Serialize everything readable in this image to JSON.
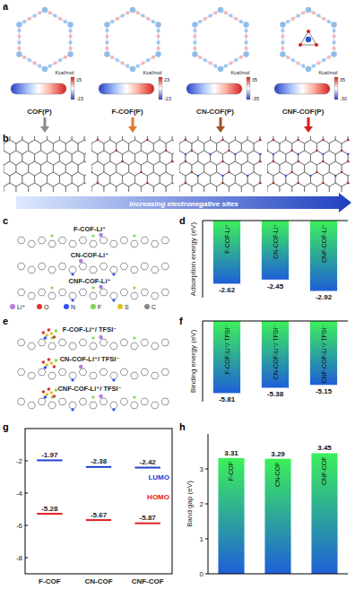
{
  "panel_labels": [
    "a",
    "b",
    "c",
    "d",
    "e",
    "f",
    "g",
    "h"
  ],
  "structures": [
    {
      "name": "COF(P)",
      "color": "#8c8c8c",
      "esp_unit": "Kcal/mol",
      "esp_max": 15,
      "esp_min": -15
    },
    {
      "name": "F-COF(P)",
      "color": "#e07b2e",
      "esp_unit": "Kcal/mol",
      "esp_max": 23,
      "esp_min": -23
    },
    {
      "name": "CN-COF(P)",
      "color": "#a0522d",
      "esp_unit": "Kcal/mol",
      "esp_max": 35,
      "esp_min": -35
    },
    {
      "name": "CNF-COF(P)",
      "color": "#d42020",
      "esp_unit": "Kcal/mol",
      "esp_max": 35,
      "esp_min": -30
    }
  ],
  "trend_label": "Increasing electronegative sites",
  "li_complexes": [
    "F-COF-Li⁺",
    "CN-COF-Li⁺",
    "CNF-COF-Li⁺"
  ],
  "tfsi_complexes": [
    "F-COF-Li⁺/ TFSI⁻",
    "CN-COF-Li⁺/ TFSI⁻",
    "CNF-COF-Li⁺/ TFSI⁻"
  ],
  "atoms": [
    {
      "label": "Li⁺",
      "color": "#b57edc"
    },
    {
      "label": "O",
      "color": "#e03030"
    },
    {
      "label": "N",
      "color": "#3050f8"
    },
    {
      "label": "F",
      "color": "#7fd650"
    },
    {
      "label": "S",
      "color": "#e0c020"
    },
    {
      "label": "C",
      "color": "#8a8a8a"
    }
  ],
  "chart_data": [
    {
      "type": "bar",
      "y_label": "Adsorption energy (eV)",
      "categories": [
        "F-COF-Li⁺",
        "CN-COF-Li⁺",
        "CNF-COF-Li⁺"
      ],
      "values": [
        -2.62,
        -2.45,
        -2.92
      ],
      "color": "#1e5fd8",
      "ylim": [
        -3.2,
        0
      ],
      "data_labels": true,
      "tick_labels": false
    },
    {
      "type": "bar",
      "y_label": "Binding energy (eV)",
      "categories": [
        "F-COF-Li⁺/ TFSI⁻",
        "CN-COF-Li⁺/ TFSI⁻",
        "CNF-COF-Li⁺/ TFSI⁻"
      ],
      "values": [
        -5.81,
        -5.38,
        -5.15
      ],
      "color": "#1e5fd8",
      "ylim": [
        -6.5,
        0
      ],
      "data_labels": true,
      "tick_labels": false
    },
    {
      "type": "scatter",
      "marker": "hline",
      "categories": [
        "F-COF",
        "CN-COF",
        "CNF-COF"
      ],
      "series": [
        {
          "name": "LUMO",
          "color": "#2040d0",
          "values": [
            -1.97,
            -2.38,
            -2.42
          ]
        },
        {
          "name": "HOMO",
          "color": "#e02020",
          "values": [
            -5.28,
            -5.67,
            -5.87
          ]
        }
      ],
      "ylim": [
        -9,
        0
      ],
      "yticks": [
        -8,
        -6,
        -4,
        -2
      ],
      "data_labels": true
    },
    {
      "type": "bar",
      "y_label": "Band gap (eV)",
      "categories": [
        "F-COF",
        "CN-COF",
        "CNF-COF"
      ],
      "values": [
        3.31,
        3.29,
        3.45
      ],
      "color": "#1e5fd8",
      "ylim": [
        0,
        4
      ],
      "yticks": [
        0,
        1,
        2,
        3
      ],
      "data_labels": true
    }
  ]
}
